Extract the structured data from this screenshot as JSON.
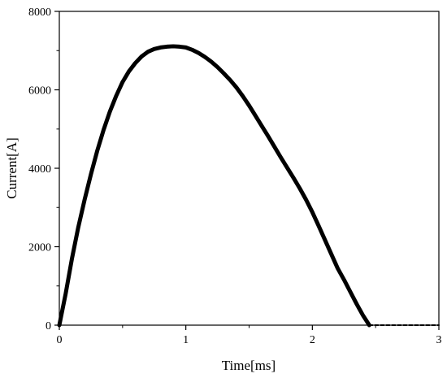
{
  "chart_data": {
    "type": "line",
    "title": "",
    "xlabel": "Time[ms]",
    "ylabel": "Current[A]",
    "xlim": [
      0,
      3
    ],
    "ylim": [
      0,
      8000
    ],
    "x_ticks": [
      "0",
      "1",
      "2",
      "3"
    ],
    "y_ticks": [
      "0",
      "2000",
      "4000",
      "6000",
      "8000"
    ],
    "grid": false,
    "legend": "none",
    "series": [
      {
        "color": "#000000",
        "x": [
          0,
          0.05,
          0.1,
          0.15,
          0.2,
          0.25,
          0.3,
          0.35,
          0.4,
          0.45,
          0.5,
          0.55,
          0.6,
          0.65,
          0.7,
          0.75,
          0.8,
          0.85,
          0.9,
          0.95,
          1.0,
          1.05,
          1.1,
          1.15,
          1.2,
          1.25,
          1.3,
          1.35,
          1.4,
          1.45,
          1.5,
          1.55,
          1.6,
          1.65,
          1.7,
          1.75,
          1.8,
          1.85,
          1.9,
          1.95,
          2.0,
          2.05,
          2.1,
          2.15,
          2.2,
          2.25,
          2.3,
          2.35,
          2.4,
          2.45
        ],
        "y": [
          0,
          800,
          1700,
          2500,
          3200,
          3850,
          4450,
          4980,
          5450,
          5850,
          6200,
          6470,
          6680,
          6850,
          6970,
          7040,
          7080,
          7100,
          7110,
          7100,
          7080,
          7020,
          6940,
          6840,
          6720,
          6580,
          6420,
          6250,
          6060,
          5840,
          5600,
          5340,
          5080,
          4820,
          4550,
          4280,
          4020,
          3760,
          3490,
          3200,
          2880,
          2530,
          2170,
          1810,
          1450,
          1160,
          850,
          540,
          250,
          0
        ]
      },
      {
        "color": "#000000",
        "style": "dashed",
        "x": [
          2.45,
          2.6,
          2.8,
          3.0
        ],
        "y": [
          0,
          0,
          0,
          0
        ]
      }
    ]
  }
}
